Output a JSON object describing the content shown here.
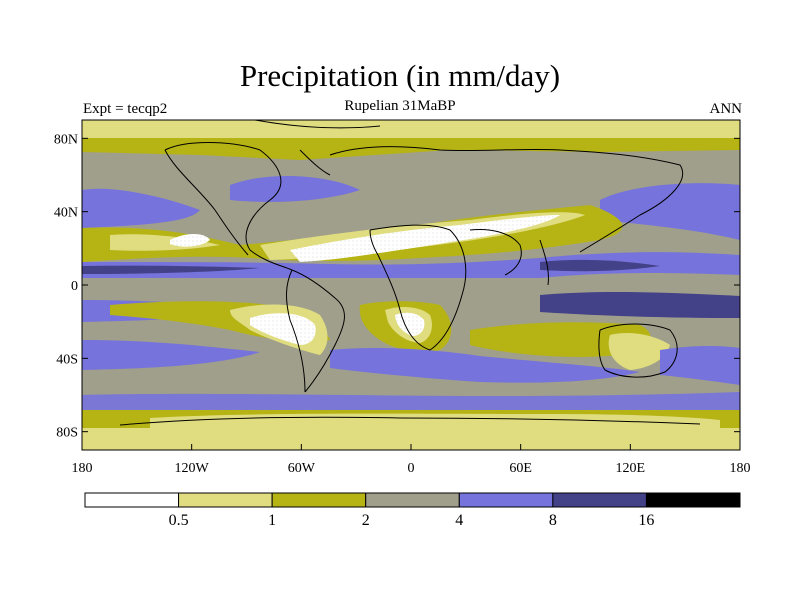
{
  "header": {
    "title": "Precipitation (in mm/day)",
    "subtitle": "Rupelian  31MaBP",
    "left_label": "Expt = tecqp2",
    "right_label": "ANN"
  },
  "chart_data": {
    "type": "heatmap",
    "title": "Precipitation (in mm/day)",
    "subtitle": "Rupelian  31MaBP",
    "x_ticks": [
      "180",
      "120W",
      "60W",
      "0",
      "60E",
      "120E",
      "180"
    ],
    "y_ticks": [
      "80N",
      "40N",
      "0",
      "40S",
      "80S"
    ],
    "x_range": [
      -180,
      180
    ],
    "y_range": [
      -90,
      90
    ],
    "colorbar": {
      "colors": [
        "#ffffff",
        "#e0dd80",
        "#b6b415",
        "#a09f8b",
        "#7673dc",
        "#434188",
        "#000000"
      ],
      "levels": [
        "0.5",
        "1",
        "2",
        "4",
        "8",
        "16"
      ]
    }
  }
}
